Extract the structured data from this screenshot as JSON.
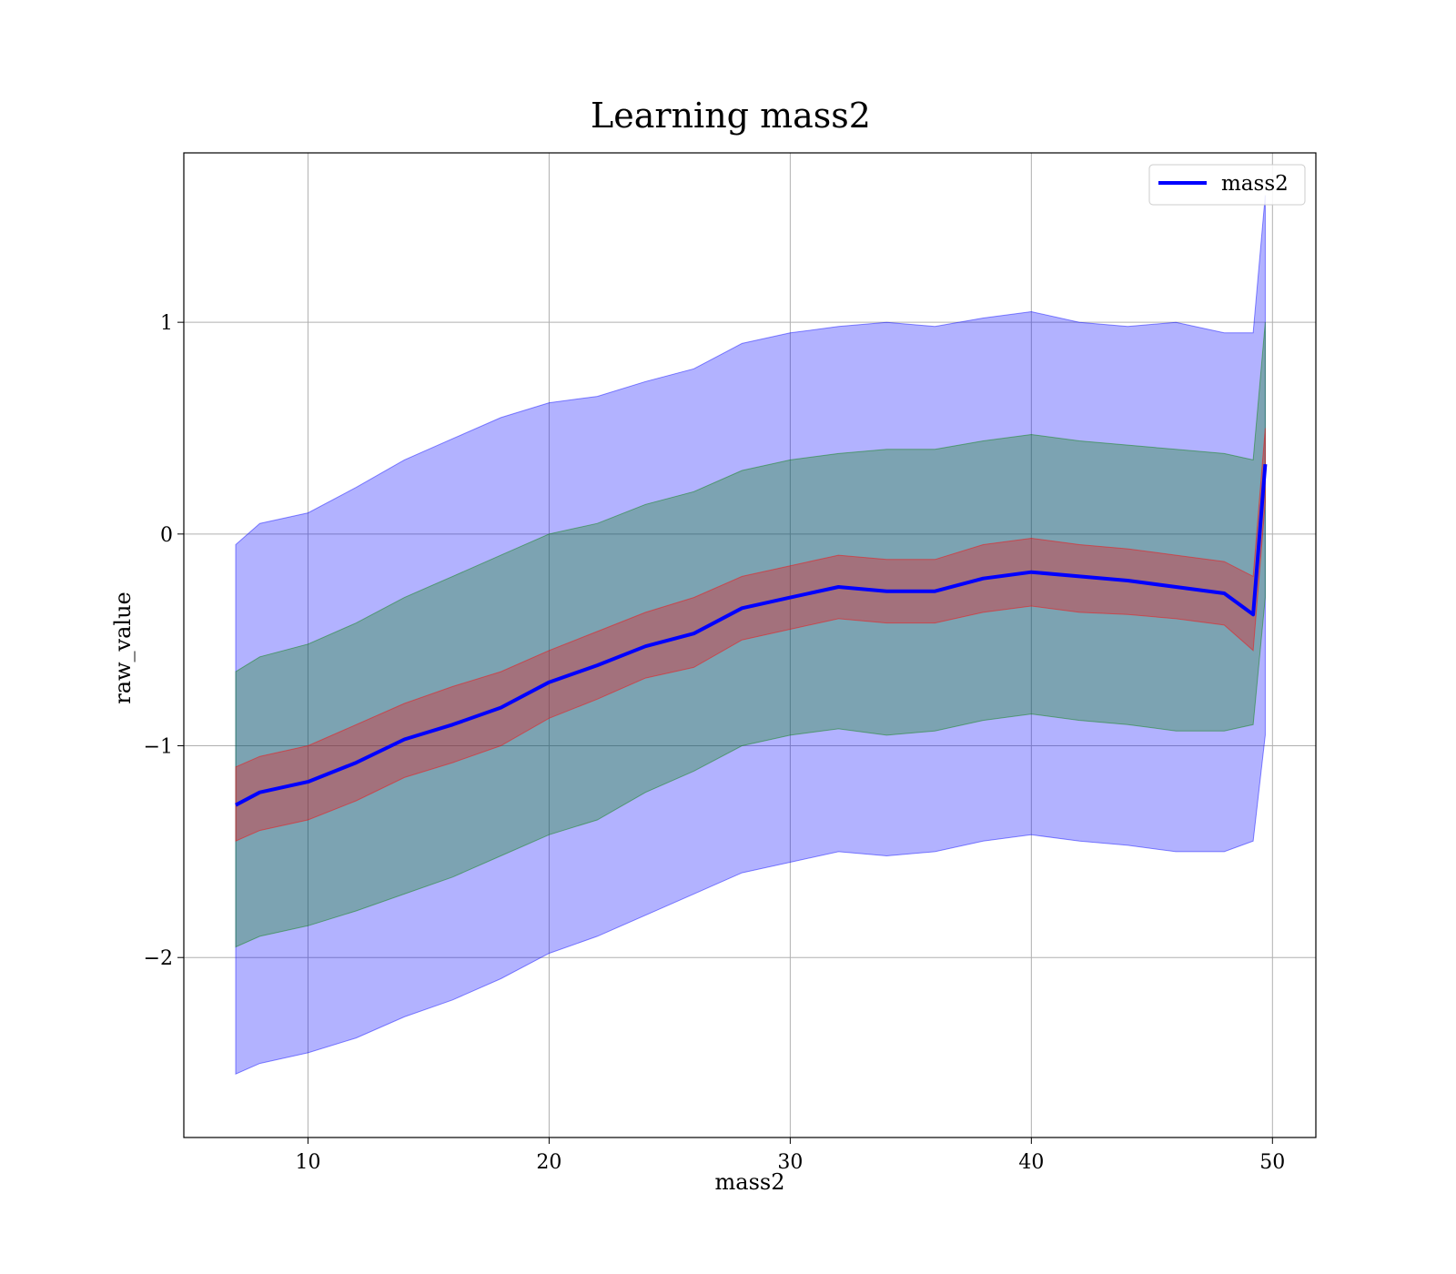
{
  "chart_data": {
    "type": "line",
    "title": "Learning mass2",
    "xlabel": "mass2",
    "ylabel": "raw_value",
    "xlim": [
      4.85,
      51.8
    ],
    "ylim": [
      -2.85,
      1.8
    ],
    "xticks": [
      10,
      20,
      30,
      40,
      50
    ],
    "xtick_labels": [
      "10",
      "20",
      "30",
      "40",
      "50"
    ],
    "yticks": [
      -2,
      -1,
      0,
      1
    ],
    "ytick_labels": [
      "−2",
      "−1",
      "0",
      "1"
    ],
    "grid": true,
    "legend_position": "top-right",
    "series": [
      {
        "name": "mass2",
        "color": "#0000ff",
        "x": [
          7.0,
          8.0,
          10.0,
          12.0,
          14.0,
          16.0,
          18.0,
          20.0,
          22.0,
          24.0,
          26.0,
          28.0,
          30.0,
          32.0,
          34.0,
          36.0,
          38.0,
          40.0,
          42.0,
          44.0,
          46.0,
          48.0,
          49.2,
          49.7
        ],
        "y": [
          -1.28,
          -1.22,
          -1.17,
          -1.08,
          -0.97,
          -0.9,
          -0.82,
          -0.7,
          -0.62,
          -0.53,
          -0.47,
          -0.35,
          -0.3,
          -0.25,
          -0.27,
          -0.27,
          -0.21,
          -0.18,
          -0.2,
          -0.22,
          -0.25,
          -0.28,
          -0.38,
          0.33
        ]
      }
    ],
    "bands": [
      {
        "color": "#0000ff",
        "opacity": 0.3,
        "x": [
          7.0,
          8.0,
          10.0,
          12.0,
          14.0,
          16.0,
          18.0,
          20.0,
          22.0,
          24.0,
          26.0,
          28.0,
          30.0,
          32.0,
          34.0,
          36.0,
          38.0,
          40.0,
          42.0,
          44.0,
          46.0,
          48.0,
          49.2,
          49.7
        ],
        "upper": [
          -0.05,
          0.05,
          0.1,
          0.22,
          0.35,
          0.45,
          0.55,
          0.62,
          0.65,
          0.72,
          0.78,
          0.9,
          0.95,
          0.98,
          1.0,
          0.98,
          1.02,
          1.05,
          1.0,
          0.98,
          1.0,
          0.95,
          0.95,
          1.6
        ],
        "lower": [
          -2.55,
          -2.5,
          -2.45,
          -2.38,
          -2.28,
          -2.2,
          -2.1,
          -1.98,
          -1.9,
          -1.8,
          -1.7,
          -1.6,
          -1.55,
          -1.5,
          -1.52,
          -1.5,
          -1.45,
          -1.42,
          -1.45,
          -1.47,
          -1.5,
          -1.5,
          -1.45,
          -0.95
        ]
      },
      {
        "color": "#008000",
        "opacity": 0.3,
        "x": [
          7.0,
          8.0,
          10.0,
          12.0,
          14.0,
          16.0,
          18.0,
          20.0,
          22.0,
          24.0,
          26.0,
          28.0,
          30.0,
          32.0,
          34.0,
          36.0,
          38.0,
          40.0,
          42.0,
          44.0,
          46.0,
          48.0,
          49.2,
          49.7
        ],
        "upper": [
          -0.65,
          -0.58,
          -0.52,
          -0.42,
          -0.3,
          -0.2,
          -0.1,
          0.0,
          0.05,
          0.14,
          0.2,
          0.3,
          0.35,
          0.38,
          0.4,
          0.4,
          0.44,
          0.47,
          0.44,
          0.42,
          0.4,
          0.38,
          0.35,
          1.0
        ],
        "lower": [
          -1.95,
          -1.9,
          -1.85,
          -1.78,
          -1.7,
          -1.62,
          -1.52,
          -1.42,
          -1.35,
          -1.22,
          -1.12,
          -1.0,
          -0.95,
          -0.92,
          -0.95,
          -0.93,
          -0.88,
          -0.85,
          -0.88,
          -0.9,
          -0.93,
          -0.93,
          -0.9,
          -0.3
        ]
      },
      {
        "color": "#ff0000",
        "opacity": 0.3,
        "x": [
          7.0,
          8.0,
          10.0,
          12.0,
          14.0,
          16.0,
          18.0,
          20.0,
          22.0,
          24.0,
          26.0,
          28.0,
          30.0,
          32.0,
          34.0,
          36.0,
          38.0,
          40.0,
          42.0,
          44.0,
          46.0,
          48.0,
          49.2,
          49.7
        ],
        "upper": [
          -1.1,
          -1.05,
          -1.0,
          -0.9,
          -0.8,
          -0.72,
          -0.65,
          -0.55,
          -0.46,
          -0.37,
          -0.3,
          -0.2,
          -0.15,
          -0.1,
          -0.12,
          -0.12,
          -0.05,
          -0.02,
          -0.05,
          -0.07,
          -0.1,
          -0.13,
          -0.2,
          0.5
        ],
        "lower": [
          -1.45,
          -1.4,
          -1.35,
          -1.26,
          -1.15,
          -1.08,
          -1.0,
          -0.87,
          -0.78,
          -0.68,
          -0.63,
          -0.5,
          -0.45,
          -0.4,
          -0.42,
          -0.42,
          -0.37,
          -0.34,
          -0.37,
          -0.38,
          -0.4,
          -0.43,
          -0.55,
          0.15
        ]
      }
    ]
  }
}
